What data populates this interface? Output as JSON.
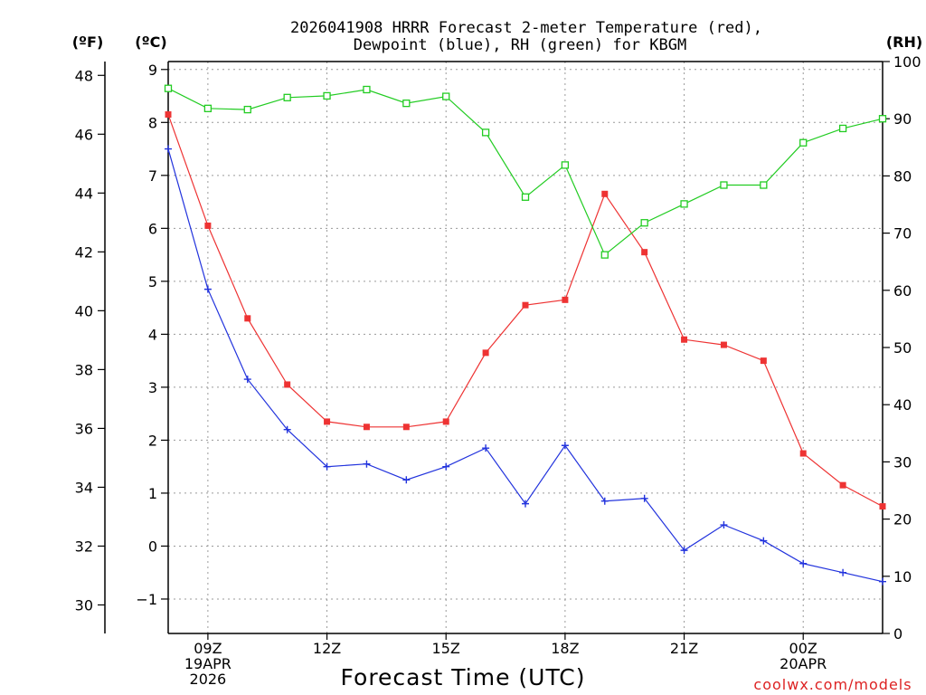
{
  "chart_data": {
    "type": "line",
    "title_lines": [
      "2026041908 HRRR Forecast 2-meter Temperature (red),",
      "Dewpoint (blue), RH (green) for KBGM"
    ],
    "xlabel": "Forecast Time (UTC)",
    "credit": "coolwx.com/models",
    "units": {
      "fahrenheit": "(ºF)",
      "celsius": "(ºC)",
      "rh": "(RH)"
    },
    "x_range_hours": [
      8,
      26
    ],
    "x_ticks": [
      {
        "hour": 9,
        "lines": [
          "09Z",
          "19APR",
          "2026"
        ]
      },
      {
        "hour": 12,
        "lines": [
          "12Z"
        ]
      },
      {
        "hour": 15,
        "lines": [
          "15Z"
        ]
      },
      {
        "hour": 18,
        "lines": [
          "18Z"
        ]
      },
      {
        "hour": 21,
        "lines": [
          "21Z"
        ]
      },
      {
        "hour": 24,
        "lines": [
          "00Z",
          "20APR"
        ]
      }
    ],
    "celsius_axis": {
      "range": [
        -1.65,
        9.15
      ],
      "ticks": [
        -1,
        0,
        1,
        2,
        3,
        4,
        5,
        6,
        7,
        8,
        9
      ]
    },
    "fahrenheit_axis": {
      "range": [
        29.03,
        48.47
      ],
      "ticks": [
        30,
        32,
        34,
        36,
        38,
        40,
        42,
        44,
        46,
        48
      ]
    },
    "rh_axis": {
      "range": [
        0,
        100
      ],
      "ticks": [
        0,
        10,
        20,
        30,
        40,
        50,
        60,
        70,
        80,
        90,
        100
      ]
    },
    "hours": [
      8,
      9,
      10,
      11,
      12,
      13,
      14,
      15,
      16,
      17,
      18,
      19,
      20,
      21,
      22,
      23,
      24,
      25,
      26
    ],
    "series": [
      {
        "name": "Temperature",
        "unit": "C",
        "color": "#ee3333",
        "marker": "filled-square",
        "values": [
          8.15,
          6.05,
          4.3,
          3.05,
          2.35,
          2.25,
          2.25,
          2.35,
          3.65,
          4.55,
          4.65,
          6.65,
          5.55,
          3.9,
          3.8,
          3.5,
          1.75,
          1.15,
          0.75
        ]
      },
      {
        "name": "Dewpoint",
        "unit": "C",
        "color": "#2233dd",
        "marker": "plus",
        "values": [
          7.5,
          4.85,
          3.15,
          2.2,
          1.5,
          1.55,
          1.25,
          1.5,
          1.85,
          0.8,
          1.9,
          0.85,
          0.9,
          -0.08,
          0.4,
          0.1,
          -0.33,
          -0.5,
          -0.67
        ]
      },
      {
        "name": "RH",
        "unit": "%",
        "color": "#22cc22",
        "marker": "open-square",
        "values": [
          95.3,
          91.8,
          91.6,
          93.7,
          94.0,
          95.1,
          92.7,
          93.9,
          87.6,
          76.3,
          81.9,
          66.2,
          71.8,
          75.1,
          78.4,
          78.4,
          85.8,
          88.3,
          90.0
        ]
      }
    ]
  }
}
